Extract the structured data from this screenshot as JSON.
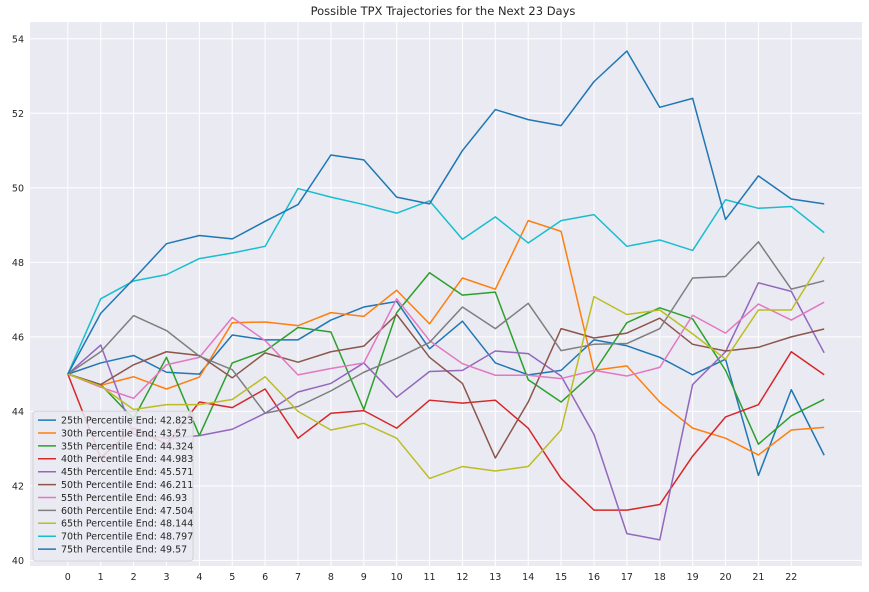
{
  "chart_data": {
    "type": "line",
    "title": "Possible TPX Trajectories for the Next 23 Days",
    "xlabel": "",
    "ylabel": "",
    "x": [
      0,
      1,
      2,
      3,
      4,
      5,
      6,
      7,
      8,
      9,
      10,
      11,
      12,
      13,
      14,
      15,
      16,
      17,
      18,
      19,
      20,
      21,
      22,
      23
    ],
    "x_ticks": [
      "0",
      "1",
      "2",
      "3",
      "4",
      "5",
      "6",
      "7",
      "8",
      "9",
      "10",
      "11",
      "12",
      "13",
      "14",
      "15",
      "16",
      "17",
      "18",
      "19",
      "20",
      "21",
      "22"
    ],
    "xlim": [
      -1.15,
      24.15
    ],
    "ylim": [
      39.85,
      54.45
    ],
    "y_ticks": [
      40,
      42,
      44,
      46,
      48,
      50,
      52,
      54
    ],
    "grid": true,
    "legend_position": "lower-left",
    "series": [
      {
        "name": "25th Percentile End: 42.823",
        "color": "#1f77b4",
        "values": [
          45.0,
          45.3,
          45.5,
          45.05,
          45.0,
          46.05,
          45.92,
          45.92,
          46.45,
          46.8,
          46.95,
          45.68,
          46.42,
          45.3,
          44.98,
          45.1,
          45.92,
          45.76,
          45.45,
          44.98,
          45.4,
          42.28,
          44.58,
          42.823
        ]
      },
      {
        "name": "30th Percentile End: 43.57",
        "color": "#ff7f0e",
        "values": [
          45.0,
          44.7,
          44.93,
          44.6,
          44.92,
          46.38,
          46.4,
          46.3,
          46.65,
          46.55,
          47.25,
          46.35,
          47.58,
          47.28,
          49.12,
          48.83,
          45.1,
          45.22,
          44.25,
          43.55,
          43.28,
          42.83,
          43.5,
          43.57
        ]
      },
      {
        "name": "35th Percentile End: 44.324",
        "color": "#2ca02c",
        "values": [
          45.0,
          44.72,
          43.8,
          45.45,
          43.35,
          45.3,
          45.62,
          46.25,
          46.13,
          44.05,
          46.65,
          47.72,
          47.12,
          47.2,
          44.85,
          44.25,
          45.05,
          46.38,
          46.78,
          46.48,
          45.1,
          43.12,
          43.88,
          44.324
        ]
      },
      {
        "name": "40th Percentile End: 44.983",
        "color": "#d62728",
        "values": [
          45.0,
          42.75,
          43.55,
          43.12,
          44.25,
          44.1,
          44.6,
          43.28,
          43.95,
          44.02,
          43.55,
          44.3,
          44.22,
          44.3,
          43.55,
          42.2,
          41.35,
          41.35,
          41.5,
          42.8,
          43.85,
          44.18,
          45.6,
          44.983
        ]
      },
      {
        "name": "45th Percentile End: 45.571",
        "color": "#9467bd",
        "values": [
          45.0,
          45.78,
          43.38,
          43.28,
          43.35,
          43.52,
          43.95,
          44.52,
          44.75,
          45.3,
          44.38,
          45.07,
          45.1,
          45.62,
          45.55,
          44.95,
          43.38,
          40.72,
          40.55,
          44.72,
          45.6,
          47.45,
          47.22,
          45.571
        ]
      },
      {
        "name": "50th Percentile End: 46.211",
        "color": "#8c564b",
        "values": [
          45.0,
          44.72,
          45.25,
          45.6,
          45.5,
          44.9,
          45.57,
          45.32,
          45.6,
          45.75,
          46.6,
          45.45,
          44.75,
          42.75,
          44.25,
          46.22,
          45.97,
          46.1,
          46.5,
          45.8,
          45.62,
          45.72,
          46.0,
          46.211
        ]
      },
      {
        "name": "55th Percentile End: 46.93",
        "color": "#e377c2",
        "values": [
          45.0,
          44.65,
          44.35,
          45.25,
          45.45,
          46.52,
          45.9,
          44.98,
          45.15,
          45.3,
          47.02,
          45.9,
          45.28,
          44.97,
          44.97,
          44.88,
          45.1,
          44.95,
          45.18,
          46.58,
          46.1,
          46.88,
          46.45,
          46.93
        ]
      },
      {
        "name": "60th Percentile End: 47.504",
        "color": "#7f7f7f",
        "values": [
          45.0,
          45.6,
          46.57,
          46.17,
          45.48,
          45.12,
          43.95,
          44.13,
          44.55,
          45.05,
          45.42,
          45.85,
          46.8,
          46.22,
          46.9,
          45.63,
          45.8,
          45.82,
          46.22,
          47.58,
          47.62,
          48.55,
          47.28,
          47.504
        ]
      },
      {
        "name": "65th Percentile End: 48.144",
        "color": "#bcbd22",
        "values": [
          45.0,
          44.68,
          44.05,
          44.18,
          44.18,
          44.32,
          44.93,
          44.0,
          43.5,
          43.68,
          43.28,
          42.2,
          42.52,
          42.4,
          42.52,
          43.5,
          47.08,
          46.6,
          46.72,
          46.08,
          45.4,
          46.72,
          46.72,
          48.144
        ]
      },
      {
        "name": "70th Percentile End: 48.797",
        "color": "#17becf",
        "values": [
          45.0,
          47.02,
          47.5,
          47.67,
          48.1,
          48.25,
          48.43,
          49.98,
          49.75,
          49.55,
          49.32,
          49.65,
          48.62,
          49.22,
          48.52,
          49.12,
          49.28,
          48.43,
          48.6,
          48.32,
          49.68,
          49.45,
          49.5,
          48.797
        ]
      },
      {
        "name": "75th Percentile End: 49.57",
        "color": "#1f77b4",
        "values": [
          45.0,
          46.63,
          47.55,
          48.5,
          48.72,
          48.63,
          49.1,
          49.55,
          50.88,
          50.75,
          49.75,
          49.57,
          51.0,
          52.1,
          51.83,
          51.67,
          52.85,
          53.67,
          52.16,
          52.4,
          49.15,
          50.32,
          49.7,
          49.57
        ]
      }
    ]
  }
}
